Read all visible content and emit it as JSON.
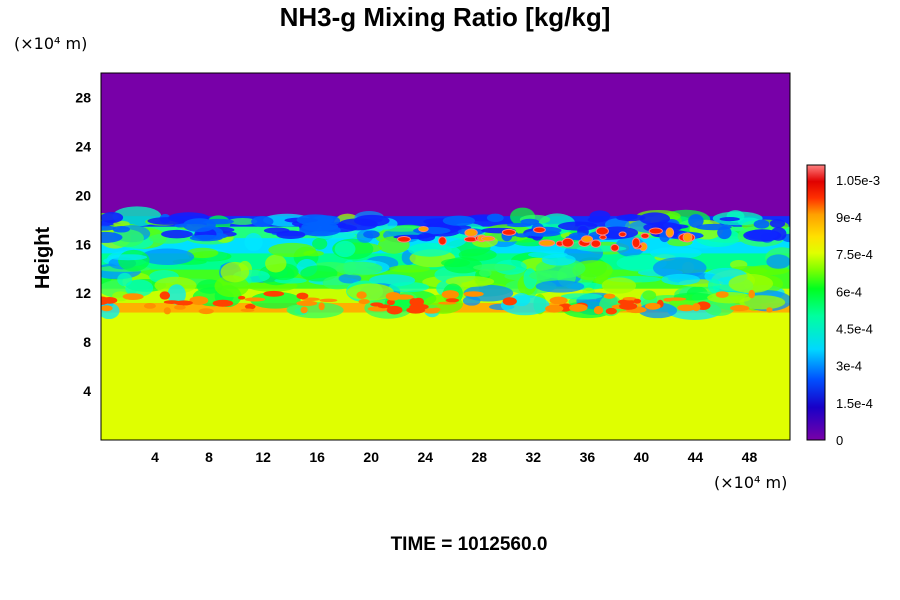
{
  "chart_data": {
    "type": "heatmap",
    "title": "NH3-g Mixing Ratio [kg/kg]",
    "ylabel": "Height",
    "y_unit_label": "(×10⁴ m)",
    "x_unit_label": "(×10⁴ m)",
    "xlim": [
      0,
      51
    ],
    "ylim": [
      0,
      30
    ],
    "x_ticks": [
      "4",
      "8",
      "12",
      "16",
      "20",
      "24",
      "28",
      "32",
      "36",
      "40",
      "44",
      "48"
    ],
    "y_ticks": [
      "4",
      "8",
      "12",
      "16",
      "20",
      "24",
      "28"
    ],
    "colorbar": {
      "min": 0,
      "max": 0.00111,
      "ticks": [
        "0",
        "1.5e-4",
        "3e-4",
        "4.5e-4",
        "6e-4",
        "7.5e-4",
        "9e-4",
        "1.05e-3"
      ],
      "tick_values": [
        0,
        0.00015,
        0.0003,
        0.00045,
        0.0006,
        0.00075,
        0.0009,
        0.00105
      ]
    },
    "field_description_values": {
      "below_cloud_value": 0.00079,
      "above_cloud_value": 0,
      "mixing_layer_bottom_height": 10.5,
      "mixing_layer_top_height": 18.3
    },
    "caption": "TIME = 1012560.0"
  }
}
